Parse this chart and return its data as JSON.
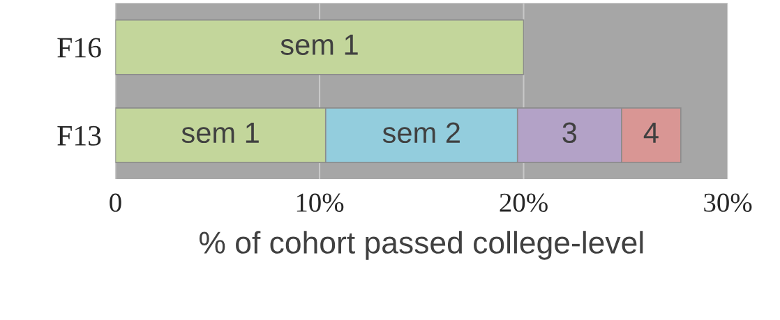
{
  "chart_data": {
    "type": "bar",
    "orientation": "horizontal",
    "stacked": true,
    "categories": [
      "F16",
      "F13"
    ],
    "series": [
      {
        "name": "sem 1",
        "color": "#c3d69b",
        "values": [
          20,
          10.3
        ]
      },
      {
        "name": "sem 2",
        "color": "#93cddd",
        "values": [
          null,
          9.4
        ]
      },
      {
        "name": "3",
        "color": "#b3a2c7",
        "values": [
          null,
          5.1
        ]
      },
      {
        "name": "4",
        "color": "#d99694",
        "values": [
          null,
          2.9
        ]
      }
    ],
    "xlim": [
      0,
      30
    ],
    "xticks": [
      0,
      {
        "value": 10,
        "label": "10%"
      },
      {
        "value": 20,
        "label": "20%"
      },
      {
        "value": 30,
        "label": "30%"
      }
    ],
    "xlabel": "% of cohort passed college-level",
    "grid": "x",
    "legend": false
  }
}
